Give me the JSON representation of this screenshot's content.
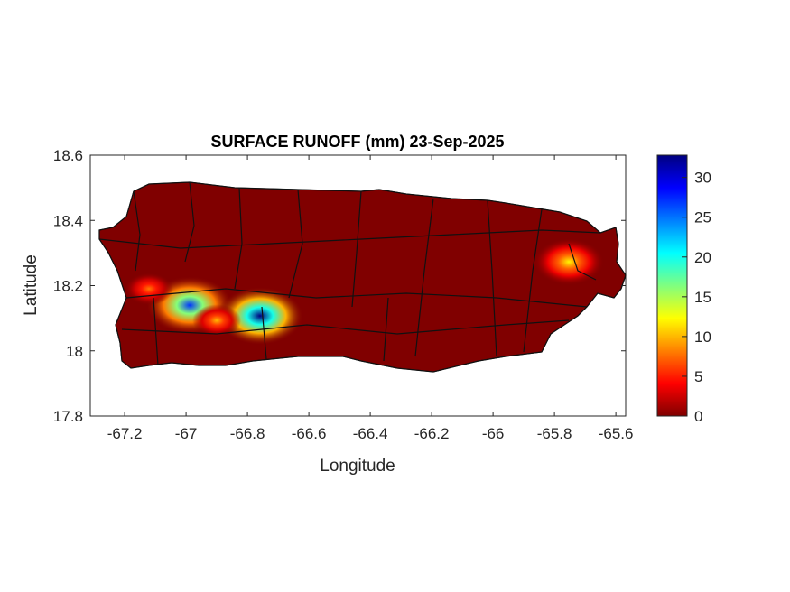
{
  "chart_data": {
    "type": "heatmap",
    "title": "SURFACE RUNOFF (mm) 23-Sep-2025",
    "xlabel": "Longitude",
    "ylabel": "Latitude",
    "xlim": [
      -67.312,
      -65.568
    ],
    "ylim": [
      17.8,
      18.6
    ],
    "xticks": [
      -67.2,
      -67,
      -66.8,
      -66.6,
      -66.4,
      -66.2,
      -66,
      -65.8,
      -65.6
    ],
    "xtick_labels": [
      "-67.2",
      "-67",
      "-66.8",
      "-66.6",
      "-66.4",
      "-66.2",
      "-66",
      "-65.8",
      "-65.6"
    ],
    "yticks": [
      17.8,
      18,
      18.2,
      18.4,
      18.6
    ],
    "ytick_labels": [
      "17.8",
      "18",
      "18.2",
      "18.4",
      "18.6"
    ],
    "colorbar": {
      "colormap": "jet (reversed)",
      "limits": [
        0,
        32.8
      ],
      "ticks": [
        0,
        5,
        10,
        15,
        20,
        25,
        30
      ],
      "tick_labels": [
        "0",
        "5",
        "10",
        "15",
        "20",
        "25",
        "30"
      ]
    },
    "background_value": 0,
    "hotspots": [
      {
        "lon": -66.988,
        "lat": 18.14,
        "peak": 27
      },
      {
        "lon": -66.759,
        "lat": 18.107,
        "peak": 33
      },
      {
        "lon": -66.9,
        "lat": 18.093,
        "peak": 10
      },
      {
        "lon": -67.121,
        "lat": 18.19,
        "peak": 8
      },
      {
        "lon": -65.753,
        "lat": 18.273,
        "peak": 12
      }
    ],
    "grid": false
  }
}
